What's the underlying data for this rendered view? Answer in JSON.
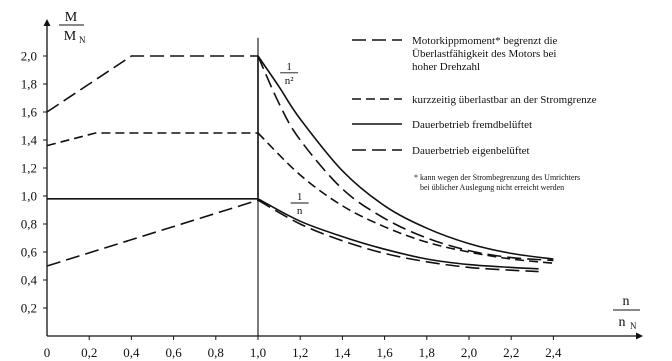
{
  "chart_data": {
    "type": "line",
    "title": "",
    "xlabel": {
      "num": "n",
      "den": "n",
      "den_sub": "N"
    },
    "ylabel": {
      "num": "M",
      "den": "M",
      "den_sub": "N"
    },
    "xlim": [
      0,
      2.45
    ],
    "ylim": [
      0,
      2.1
    ],
    "x_ticks": [
      "0",
      "0,2",
      "0,4",
      "0,6",
      "0,8",
      "1,0",
      "1,2",
      "1,4",
      "1,6",
      "1,8",
      "2,0",
      "2,2",
      "2,4"
    ],
    "y_ticks": [
      "0,2",
      "0,4",
      "0,6",
      "0,8",
      "1,0",
      "1,2",
      "1,4",
      "1,6",
      "1,8",
      "2,0"
    ],
    "x_tick_values": [
      0,
      0.2,
      0.4,
      0.6,
      0.8,
      1.0,
      1.2,
      1.4,
      1.6,
      1.8,
      2.0,
      2.2,
      2.4
    ],
    "y_tick_values": [
      0.2,
      0.4,
      0.6,
      0.8,
      1.0,
      1.2,
      1.4,
      1.6,
      1.8,
      2.0
    ],
    "grid": false,
    "legend_position": "right",
    "series": [
      {
        "name": "Motorkippmoment* begrenzt die Überlastfähigkeit des Motors bei hoher Drehzahl",
        "dash": "long",
        "segments": [
          [
            [
              0.0,
              1.6
            ],
            [
              0.4,
              2.0
            ],
            [
              1.0,
              2.0
            ]
          ],
          [
            [
              1.0,
              2.0
            ],
            [
              1.1,
              1.66
            ],
            [
              1.2,
              1.4
            ],
            [
              1.4,
              1.05
            ],
            [
              1.6,
              0.84
            ],
            [
              1.8,
              0.7
            ],
            [
              2.0,
              0.61
            ],
            [
              2.2,
              0.56
            ],
            [
              2.4,
              0.54
            ]
          ]
        ]
      },
      {
        "name": "kurzzeitig überlastbar an der Stromgrenze",
        "dash": "medium",
        "segments": [
          [
            [
              0.0,
              1.36
            ],
            [
              0.23,
              1.45
            ],
            [
              1.0,
              1.45
            ]
          ],
          [
            [
              1.0,
              1.45
            ],
            [
              1.2,
              1.15
            ],
            [
              1.4,
              0.93
            ],
            [
              1.6,
              0.78
            ],
            [
              1.8,
              0.67
            ],
            [
              2.0,
              0.6
            ],
            [
              2.2,
              0.55
            ],
            [
              2.4,
              0.52
            ]
          ]
        ]
      },
      {
        "name": "Dauerbetrieb fremdbelüftet",
        "dash": "solid",
        "segments": [
          [
            [
              0.0,
              0.98
            ],
            [
              1.0,
              0.98
            ]
          ],
          [
            [
              1.0,
              0.98
            ],
            [
              1.0,
              2.0
            ]
          ],
          [
            [
              1.0,
              2.0
            ],
            [
              1.1,
              1.78
            ],
            [
              1.2,
              1.55
            ],
            [
              1.4,
              1.18
            ],
            [
              1.6,
              0.93
            ],
            [
              1.8,
              0.77
            ],
            [
              2.0,
              0.66
            ],
            [
              2.2,
              0.59
            ],
            [
              2.4,
              0.55
            ]
          ],
          [
            [
              1.0,
              0.98
            ],
            [
              1.2,
              0.82
            ],
            [
              1.4,
              0.71
            ],
            [
              1.6,
              0.62
            ],
            [
              1.8,
              0.55
            ],
            [
              2.0,
              0.51
            ],
            [
              2.2,
              0.49
            ],
            [
              2.33,
              0.48
            ]
          ]
        ]
      },
      {
        "name": "Dauerbetrieb eigenbelüftet",
        "dash": "long",
        "segments": [
          [
            [
              0.0,
              0.5
            ],
            [
              1.0,
              0.97
            ]
          ],
          [
            [
              1.0,
              0.97
            ],
            [
              1.2,
              0.8
            ],
            [
              1.4,
              0.68
            ],
            [
              1.6,
              0.59
            ],
            [
              1.8,
              0.53
            ],
            [
              2.0,
              0.49
            ],
            [
              2.2,
              0.47
            ],
            [
              2.33,
              0.46
            ]
          ]
        ]
      }
    ],
    "curve_labels": [
      {
        "num": "1",
        "den": "n²",
        "x": 1.1,
        "y": 1.88
      },
      {
        "num": "1",
        "den": "n",
        "x": 1.15,
        "y": 0.95
      }
    ],
    "legend_footnote": "* kann wegen der Strombegrenzung des Umrichters bei üblicher Auslegung nicht erreicht werden",
    "legend_lines": [
      [
        "Motorkippmoment* begrenzt die",
        "Überlastfähigkeit des Motors bei",
        "hoher Drehzahl"
      ],
      [
        "kurzzeitig überlastbar an der Stromgrenze"
      ],
      [
        "Dauerbetrieb fremdbelüftet"
      ],
      [
        "Dauerbetrieb eigenbelüftet"
      ]
    ],
    "footnote_lines": [
      "* kann wegen der Strombegrenzung des Umrichters",
      "bei üblicher Auslegung nicht erreicht werden"
    ]
  }
}
